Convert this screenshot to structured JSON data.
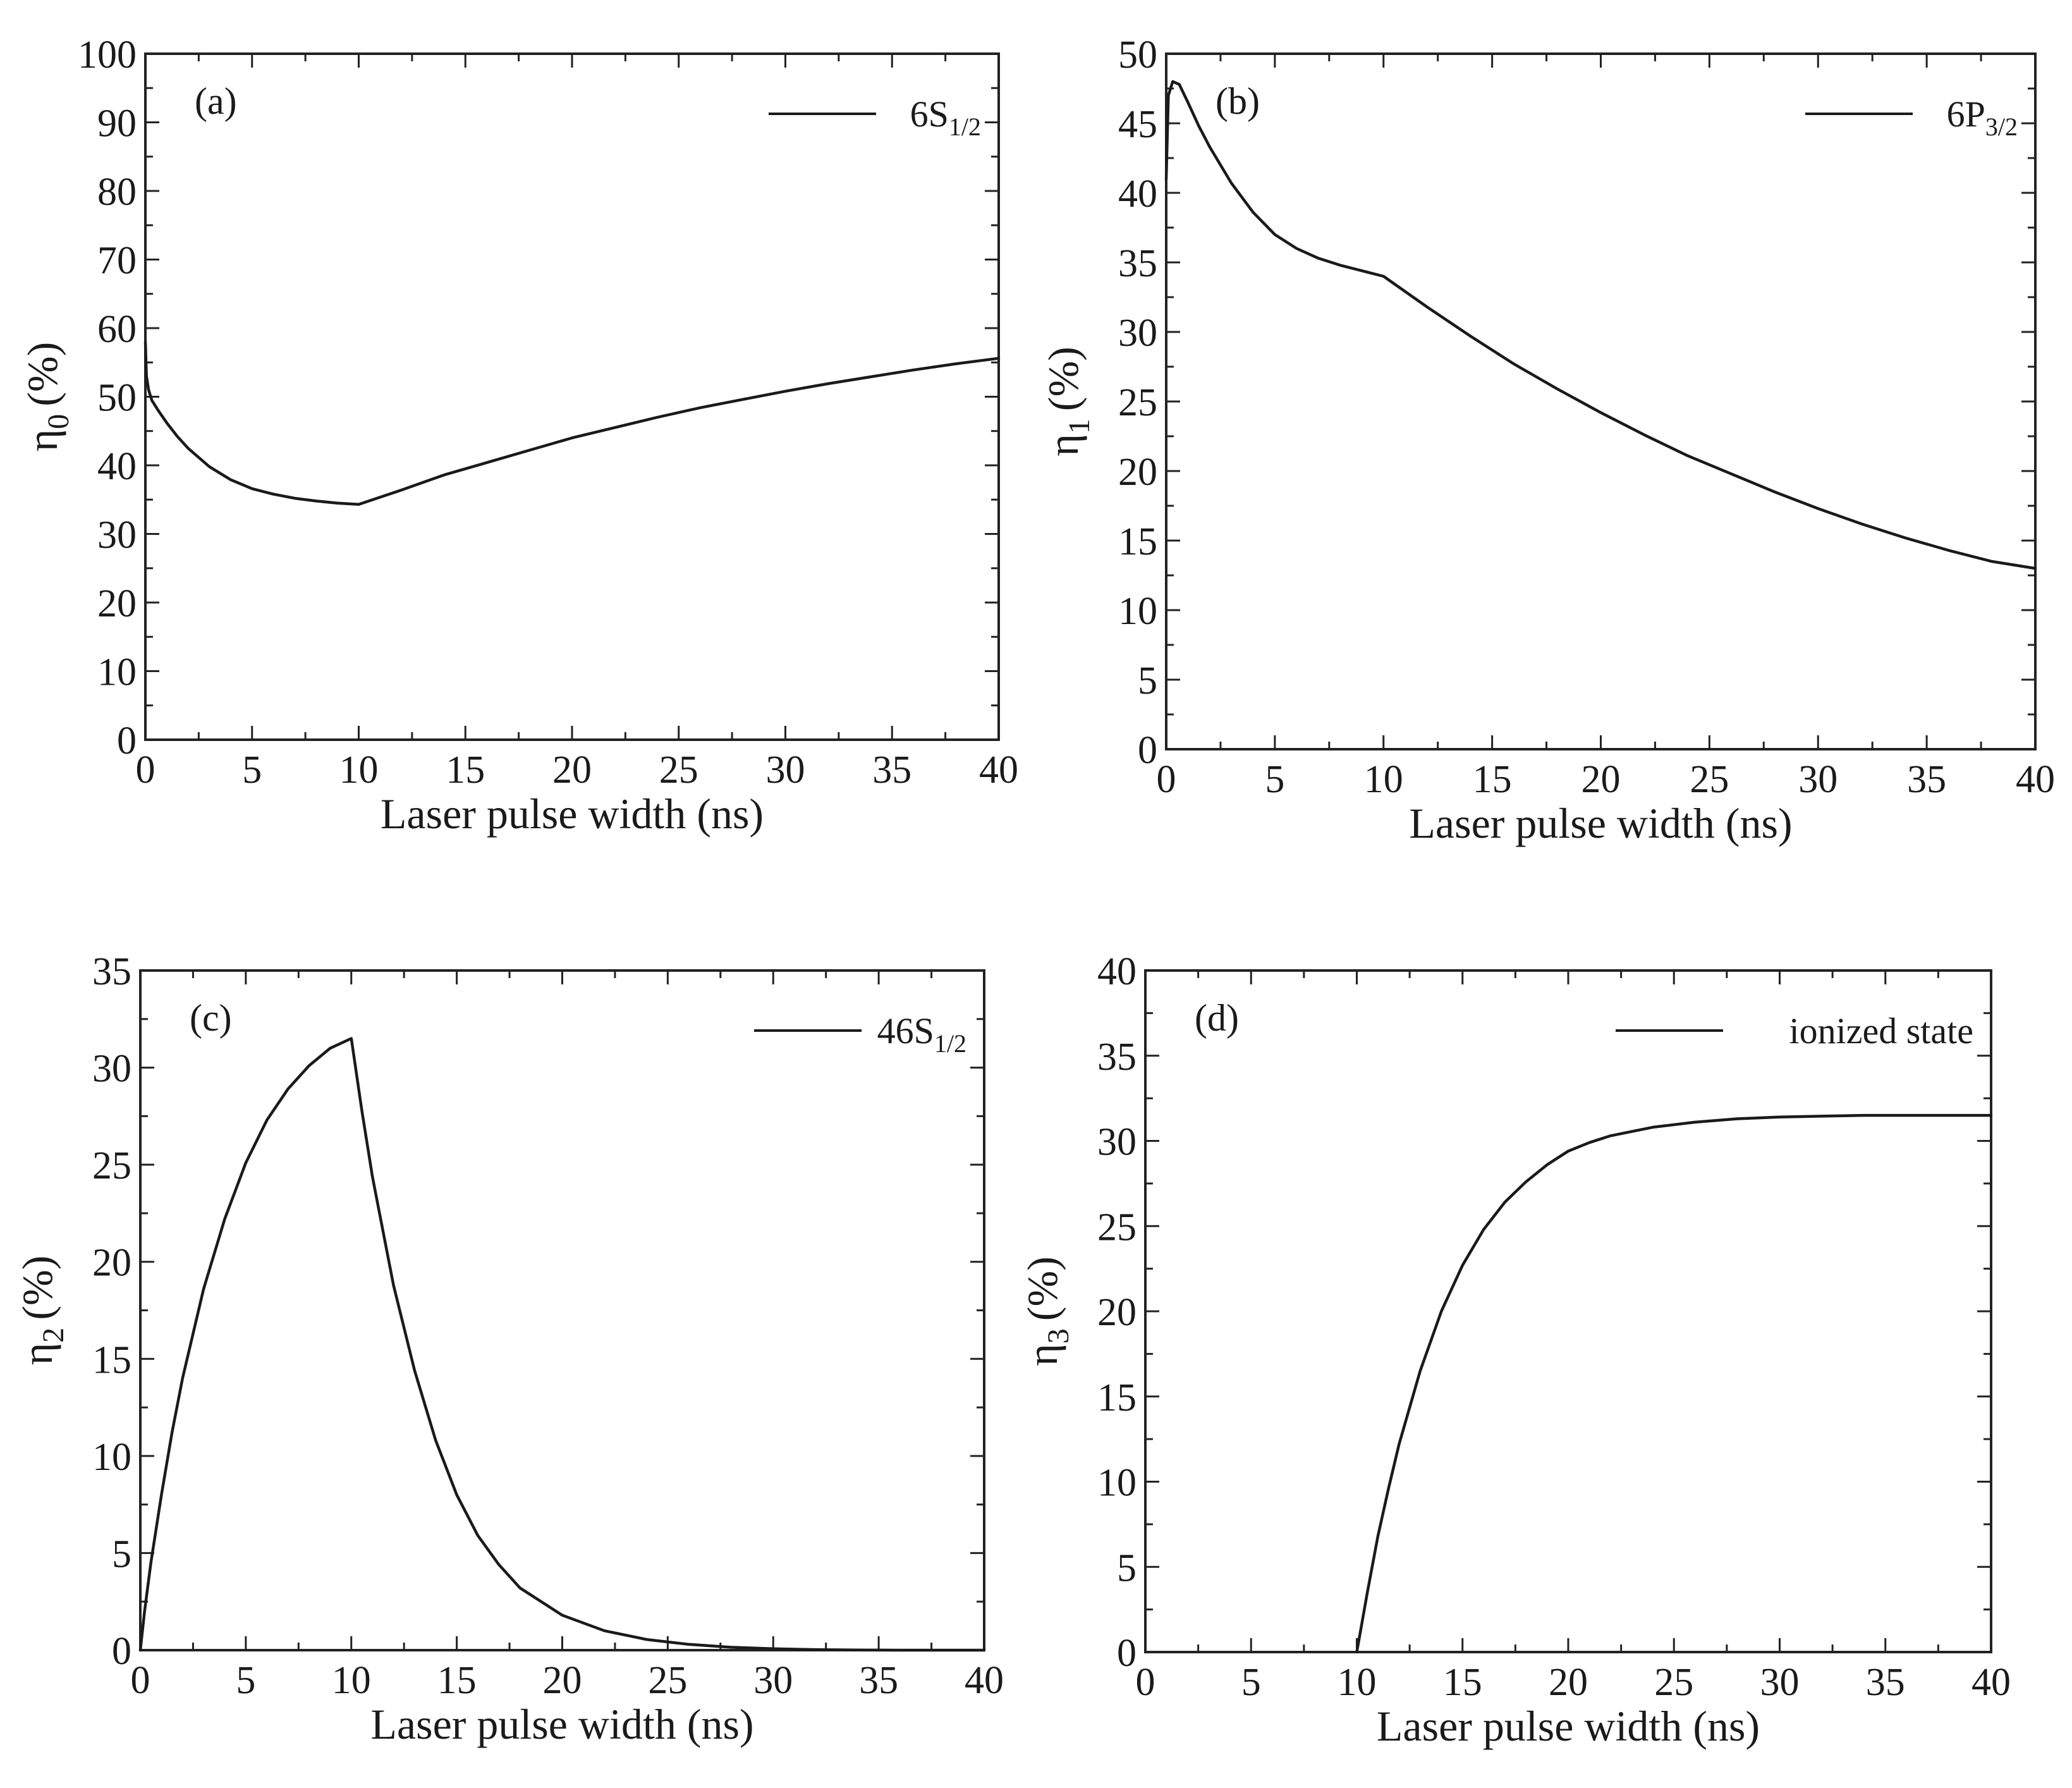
{
  "chart_data": [
    {
      "type": "line",
      "panel_label": "(a)",
      "xlabel": "Laser pulse width (ns)",
      "ylabel_symbol": "η",
      "ylabel_subscript": "0",
      "ylabel_unit": "(%)",
      "xlim": [
        0,
        40
      ],
      "ylim": [
        0,
        100
      ],
      "xticks": [
        0,
        5,
        10,
        15,
        20,
        25,
        30,
        35,
        40
      ],
      "yticks": [
        0,
        10,
        20,
        30,
        40,
        50,
        60,
        70,
        80,
        90,
        100
      ],
      "legend": {
        "main": "6S",
        "sub": "1/2",
        "position": "top-right"
      },
      "series": [
        {
          "name": "6S1/2",
          "x": [
            0,
            0.05,
            0.15,
            0.3,
            0.6,
            1,
            1.5,
            2,
            3,
            4,
            5,
            6,
            7,
            8,
            9,
            10,
            12,
            14,
            16,
            18,
            20,
            22,
            24,
            26,
            28,
            30,
            32,
            34,
            36,
            38,
            40
          ],
          "y": [
            58,
            53,
            51,
            49.5,
            48,
            46.2,
            44.2,
            42.5,
            39.8,
            37.9,
            36.6,
            35.8,
            35.2,
            34.8,
            34.5,
            34.3,
            36.4,
            38.6,
            40.4,
            42.2,
            44.0,
            45.5,
            47.0,
            48.4,
            49.6,
            50.8,
            51.9,
            52.9,
            53.9,
            54.8,
            55.6
          ]
        }
      ]
    },
    {
      "type": "line",
      "panel_label": "(b)",
      "xlabel": "Laser pulse width (ns)",
      "ylabel_symbol": "η",
      "ylabel_subscript": "1",
      "ylabel_unit": "(%)",
      "xlim": [
        0,
        40
      ],
      "ylim": [
        0,
        50
      ],
      "xticks": [
        0,
        5,
        10,
        15,
        20,
        25,
        30,
        35,
        40
      ],
      "yticks": [
        0,
        5,
        10,
        15,
        20,
        25,
        30,
        35,
        40,
        45,
        50
      ],
      "legend": {
        "main": "6P",
        "sub": "3/2",
        "position": "top-right"
      },
      "series": [
        {
          "name": "6P3/2",
          "x": [
            0,
            0.1,
            0.3,
            0.6,
            1,
            1.5,
            2,
            3,
            4,
            5,
            6,
            7,
            8,
            9,
            10,
            12,
            14,
            16,
            18,
            20,
            22,
            24,
            26,
            28,
            30,
            32,
            34,
            36,
            38,
            40
          ],
          "y": [
            41,
            47,
            48,
            47.8,
            46.5,
            44.8,
            43.3,
            40.7,
            38.6,
            37.0,
            36.0,
            35.3,
            34.8,
            34.4,
            34.0,
            31.8,
            29.7,
            27.7,
            25.9,
            24.2,
            22.6,
            21.1,
            19.8,
            18.5,
            17.3,
            16.2,
            15.2,
            14.3,
            13.5,
            13.0
          ]
        }
      ]
    },
    {
      "type": "line",
      "panel_label": "(c)",
      "xlabel": "Laser pulse width (ns)",
      "ylabel_symbol": "η",
      "ylabel_subscript": "2",
      "ylabel_unit": "(%)",
      "xlim": [
        0,
        40
      ],
      "ylim": [
        0,
        35
      ],
      "xticks": [
        0,
        5,
        10,
        15,
        20,
        25,
        30,
        35,
        40
      ],
      "yticks": [
        0,
        5,
        10,
        15,
        20,
        25,
        30,
        35
      ],
      "legend": {
        "main": "46S",
        "sub": "1/2",
        "position": "top-right"
      },
      "series": [
        {
          "name": "46S1/2",
          "x": [
            0,
            0.2,
            0.5,
            1,
            1.5,
            2,
            3,
            4,
            5,
            6,
            7,
            8,
            9,
            10,
            10.5,
            11,
            12,
            13,
            14,
            15,
            16,
            17,
            18,
            20,
            22,
            24,
            26,
            28,
            30,
            32,
            34,
            36,
            38,
            40
          ],
          "y": [
            0,
            2.0,
            4.5,
            8.0,
            11.2,
            14.0,
            18.6,
            22.2,
            25.1,
            27.3,
            28.9,
            30.1,
            31.0,
            31.5,
            27.8,
            24.4,
            18.8,
            14.4,
            10.8,
            8.0,
            5.9,
            4.4,
            3.2,
            1.8,
            1.0,
            0.55,
            0.3,
            0.15,
            0.07,
            0.03,
            0.01,
            0,
            0,
            0
          ]
        }
      ]
    },
    {
      "type": "line",
      "panel_label": "(d)",
      "xlabel": "Laser pulse width (ns)",
      "ylabel_symbol": "η",
      "ylabel_subscript": "3",
      "ylabel_unit": "(%)",
      "xlim": [
        0,
        40
      ],
      "ylim": [
        0,
        40
      ],
      "xticks": [
        0,
        5,
        10,
        15,
        20,
        25,
        30,
        35,
        40
      ],
      "yticks": [
        0,
        5,
        10,
        15,
        20,
        25,
        30,
        35,
        40
      ],
      "legend": {
        "main": "ionized state",
        "sub": "",
        "position": "top-right"
      },
      "series": [
        {
          "name": "ionized state",
          "x": [
            10,
            10.5,
            11,
            11.5,
            12,
            13,
            14,
            15,
            16,
            17,
            18,
            19,
            20,
            21,
            22,
            24,
            26,
            28,
            30,
            32,
            34,
            36,
            38,
            40
          ],
          "y": [
            0,
            3.5,
            6.8,
            9.6,
            12.2,
            16.5,
            20.0,
            22.7,
            24.8,
            26.4,
            27.6,
            28.6,
            29.4,
            29.9,
            30.3,
            30.8,
            31.1,
            31.3,
            31.4,
            31.45,
            31.5,
            31.5,
            31.5,
            31.5
          ]
        }
      ]
    }
  ]
}
